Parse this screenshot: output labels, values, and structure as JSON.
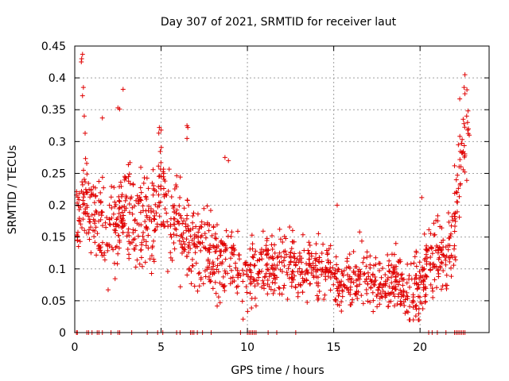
{
  "chart_data": {
    "type": "scatter",
    "title": "Day 307 of 2021, SRMTID for receiver laut",
    "xlabel": "GPS time / hours",
    "ylabel": "SRMTID / TECUs",
    "xlim": [
      0,
      24
    ],
    "ylim": [
      0,
      0.45
    ],
    "xticks": [
      0,
      5,
      10,
      15,
      20
    ],
    "xtick_labels": [
      "0",
      "5",
      "10",
      "15",
      "20"
    ],
    "yticks": [
      0,
      0.05,
      0.1,
      0.15,
      0.2,
      0.25,
      0.3,
      0.35,
      0.4,
      0.45
    ],
    "ytick_labels": [
      "0",
      "0.05",
      "0.1",
      "0.15",
      "0.2",
      "0.25",
      "0.3",
      "0.35",
      "0.4",
      "0.45"
    ],
    "grid": true,
    "marker": "+",
    "color": "#e00000",
    "trend": [
      [
        0.0,
        0.16
      ],
      [
        0.5,
        0.22
      ],
      [
        1.0,
        0.19
      ],
      [
        1.5,
        0.17
      ],
      [
        2.0,
        0.15
      ],
      [
        2.5,
        0.18
      ],
      [
        3.0,
        0.21
      ],
      [
        3.5,
        0.17
      ],
      [
        4.0,
        0.16
      ],
      [
        4.5,
        0.19
      ],
      [
        5.0,
        0.22
      ],
      [
        5.5,
        0.19
      ],
      [
        6.0,
        0.17
      ],
      [
        6.5,
        0.16
      ],
      [
        7.0,
        0.14
      ],
      [
        7.5,
        0.13
      ],
      [
        8.0,
        0.12
      ],
      [
        8.5,
        0.11
      ],
      [
        9.0,
        0.11
      ],
      [
        9.5,
        0.1
      ],
      [
        10.0,
        0.09
      ],
      [
        10.5,
        0.09
      ],
      [
        11.0,
        0.1
      ],
      [
        11.5,
        0.1
      ],
      [
        12.0,
        0.11
      ],
      [
        12.5,
        0.11
      ],
      [
        13.0,
        0.1
      ],
      [
        13.5,
        0.1
      ],
      [
        14.0,
        0.1
      ],
      [
        14.5,
        0.1
      ],
      [
        15.0,
        0.09
      ],
      [
        15.5,
        0.08
      ],
      [
        16.0,
        0.08
      ],
      [
        16.5,
        0.09
      ],
      [
        17.0,
        0.09
      ],
      [
        17.5,
        0.08
      ],
      [
        18.0,
        0.08
      ],
      [
        18.5,
        0.09
      ],
      [
        19.0,
        0.07
      ],
      [
        19.5,
        0.06
      ],
      [
        20.0,
        0.08
      ],
      [
        20.5,
        0.1
      ],
      [
        21.0,
        0.11
      ],
      [
        21.5,
        0.12
      ],
      [
        22.0,
        0.15
      ],
      [
        22.5,
        0.3
      ],
      [
        22.8,
        0.33
      ]
    ],
    "spread": [
      [
        0.0,
        0.04
      ],
      [
        2.0,
        0.06
      ],
      [
        5.0,
        0.07
      ],
      [
        7.0,
        0.05
      ],
      [
        10.0,
        0.04
      ],
      [
        15.0,
        0.035
      ],
      [
        19.0,
        0.035
      ],
      [
        21.0,
        0.05
      ],
      [
        22.8,
        0.05
      ]
    ],
    "highlights": [
      {
        "x": 0.45,
        "y": 0.437
      },
      {
        "x": 0.4,
        "y": 0.43
      },
      {
        "x": 0.38,
        "y": 0.425
      },
      {
        "x": 0.5,
        "y": 0.385
      },
      {
        "x": 0.45,
        "y": 0.372
      },
      {
        "x": 2.8,
        "y": 0.382
      },
      {
        "x": 2.5,
        "y": 0.353
      },
      {
        "x": 2.6,
        "y": 0.351
      },
      {
        "x": 1.6,
        "y": 0.337
      },
      {
        "x": 0.55,
        "y": 0.34
      },
      {
        "x": 0.6,
        "y": 0.313
      },
      {
        "x": 4.9,
        "y": 0.322
      },
      {
        "x": 5.0,
        "y": 0.318
      },
      {
        "x": 6.5,
        "y": 0.325
      },
      {
        "x": 6.55,
        "y": 0.322
      },
      {
        "x": 6.5,
        "y": 0.305
      },
      {
        "x": 8.7,
        "y": 0.275
      },
      {
        "x": 8.9,
        "y": 0.27
      },
      {
        "x": 9.75,
        "y": 0.021
      },
      {
        "x": 10.5,
        "y": 0.042
      },
      {
        "x": 22.6,
        "y": 0.405
      },
      {
        "x": 22.55,
        "y": 0.385
      },
      {
        "x": 22.6,
        "y": 0.375
      },
      {
        "x": 22.3,
        "y": 0.367
      },
      {
        "x": 22.7,
        "y": 0.34
      },
      {
        "x": 22.75,
        "y": 0.33
      },
      {
        "x": 22.8,
        "y": 0.32
      },
      {
        "x": 22.85,
        "y": 0.31
      },
      {
        "x": 22.0,
        "y": 0.262
      },
      {
        "x": 22.1,
        "y": 0.24
      },
      {
        "x": 20.1,
        "y": 0.212
      },
      {
        "x": 15.2,
        "y": 0.2
      },
      {
        "x": 16.5,
        "y": 0.158
      },
      {
        "x": 18.6,
        "y": 0.14
      }
    ],
    "zero_points": [
      0.1,
      0.15,
      0.7,
      0.8,
      1.0,
      1.3,
      1.4,
      1.6,
      2.1,
      2.5,
      2.6,
      3.3,
      4.2,
      4.8,
      5.1,
      5.9,
      6.1,
      6.7,
      6.8,
      6.9,
      7.1,
      7.4,
      7.9,
      9.6,
      10.0,
      10.1,
      10.2,
      10.3,
      10.4,
      10.5,
      11.2,
      11.7,
      12.8,
      20.5,
      20.7,
      21.0,
      21.5,
      22.0,
      22.1,
      22.2,
      22.3,
      22.4,
      22.5,
      22.6
    ]
  }
}
